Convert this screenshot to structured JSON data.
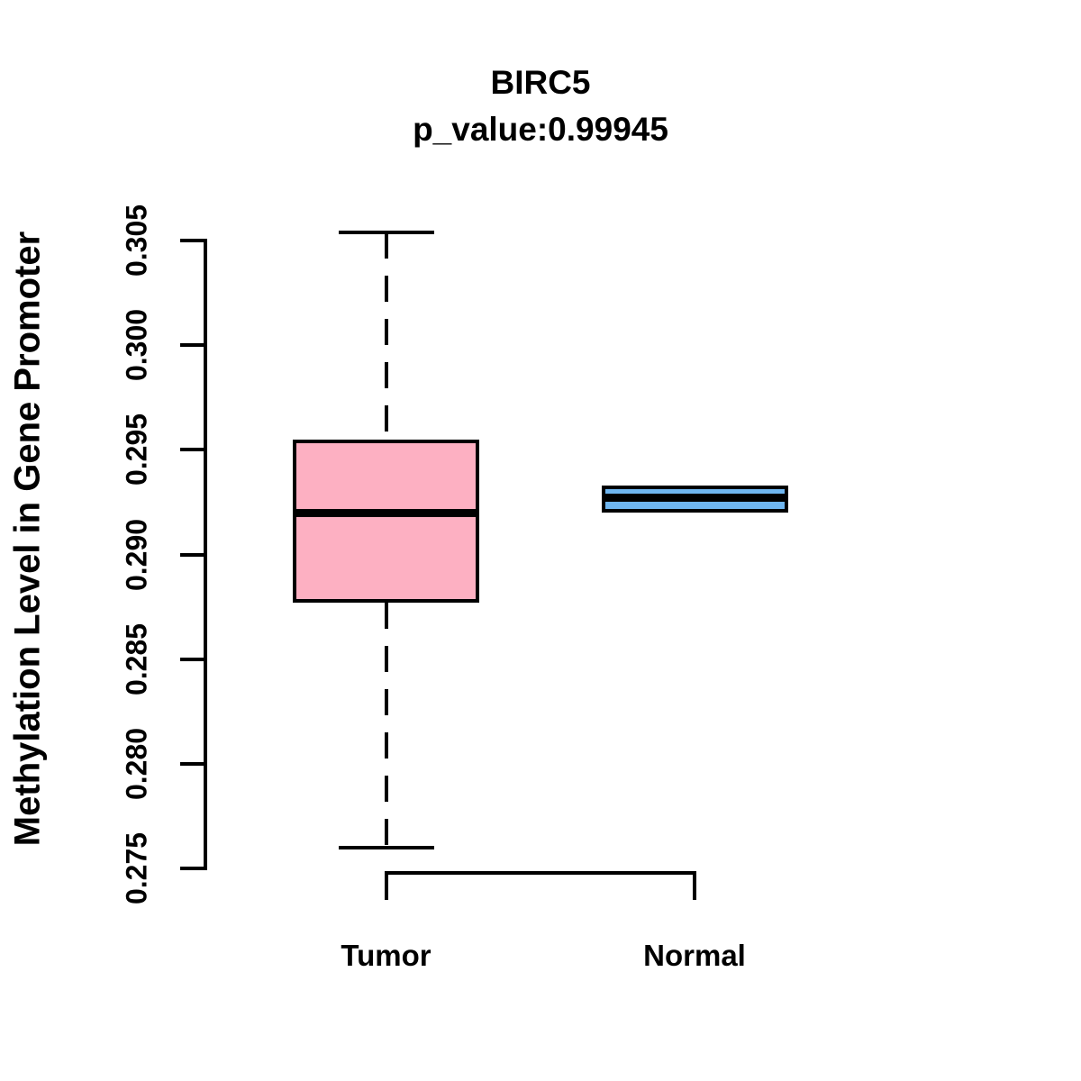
{
  "chart_data": {
    "type": "boxplot",
    "title": "BIRC5",
    "subtitle": "p_value:0.99945",
    "ylabel": "Methylation Level in Gene Promoter",
    "xlabel": "",
    "ylim": [
      0.275,
      0.305
    ],
    "yticks": [
      "0.275",
      "0.280",
      "0.285",
      "0.290",
      "0.295",
      "0.300",
      "0.305"
    ],
    "grid": false,
    "legend": "none",
    "categories": [
      "Tumor",
      "Normal"
    ],
    "groups": [
      {
        "label": "Tumor",
        "color": "#FDB0C2",
        "stats": {
          "whisker_low": 0.276,
          "q1": 0.2877,
          "median": 0.292,
          "q3": 0.2955,
          "whisker_high": 0.3054
        }
      },
      {
        "label": "Normal",
        "color": "#6FB6F0",
        "stats": {
          "whisker_low": 0.292,
          "q1": 0.292,
          "median": 0.2927,
          "q3": 0.2933,
          "whisker_high": 0.2933
        }
      }
    ],
    "colors": {
      "line": "#000000",
      "tumor_fill": "#FDB0C2",
      "normal_fill": "#6FB6F0",
      "background": "#FFFFFF"
    }
  }
}
